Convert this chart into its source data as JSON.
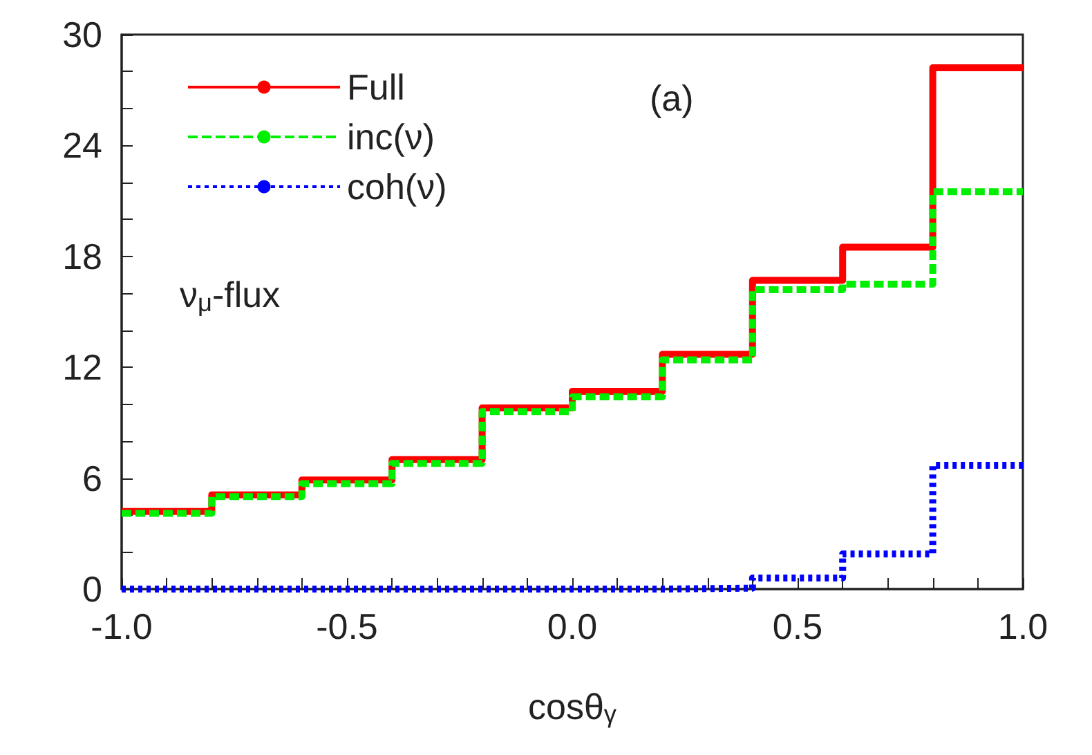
{
  "chart_data": {
    "type": "histogram",
    "xlabel": "cosθ$_{γ}$",
    "bins": [
      -1.0,
      -0.8,
      -0.6,
      -0.4,
      -0.2,
      0.0,
      0.2,
      0.4,
      0.6,
      0.8,
      1.0
    ],
    "series": [
      {
        "name": "Full",
        "color": "#ff0000",
        "line_style": "solid",
        "values": [
          4.2,
          5.1,
          5.9,
          7.0,
          9.8,
          10.7,
          12.7,
          16.7,
          18.5,
          28.2
        ]
      },
      {
        "name": "inc(ν)",
        "color": "#00ee00",
        "line_style": "dashed",
        "values": [
          4.1,
          5.0,
          5.7,
          6.8,
          9.6,
          10.4,
          12.4,
          16.2,
          16.5,
          21.5
        ]
      },
      {
        "name": "coh(ν)",
        "color": "#0000ff",
        "line_style": "dotted",
        "values": [
          0,
          0,
          0,
          0,
          0,
          0,
          0.05,
          0.6,
          1.9,
          6.7
        ]
      }
    ],
    "annotations": [
      "(a)",
      "ν$_{μ}$-flux"
    ],
    "xlim": [
      -1.0,
      1.0
    ],
    "xticks": [
      {
        "value": -1.0,
        "label": "-1.0"
      },
      {
        "value": -0.9,
        "label": null
      },
      {
        "value": -0.8,
        "label": null
      },
      {
        "value": -0.7,
        "label": null
      },
      {
        "value": -0.6,
        "label": null
      },
      {
        "value": -0.5,
        "label": "-0.5"
      },
      {
        "value": -0.4,
        "label": null
      },
      {
        "value": -0.3,
        "label": null
      },
      {
        "value": -0.2,
        "label": null
      },
      {
        "value": -0.1,
        "label": null
      },
      {
        "value": 0.0,
        "label": "0.0"
      },
      {
        "value": 0.1,
        "label": null
      },
      {
        "value": 0.2,
        "label": null
      },
      {
        "value": 0.3,
        "label": null
      },
      {
        "value": 0.4,
        "label": null
      },
      {
        "value": 0.5,
        "label": "0.5"
      },
      {
        "value": 0.6,
        "label": null
      },
      {
        "value": 0.7,
        "label": null
      },
      {
        "value": 0.8,
        "label": null
      },
      {
        "value": 0.9,
        "label": null
      },
      {
        "value": 1.0,
        "label": "1.0"
      }
    ],
    "ylim": [
      0,
      30
    ],
    "yticks": [
      0,
      {
        "value": 2,
        "label": null
      },
      {
        "value": 4,
        "label": null
      },
      6,
      {
        "value": 8,
        "label": null
      },
      {
        "value": 10,
        "label": null
      },
      12,
      {
        "value": 14,
        "label": null
      },
      {
        "value": 16,
        "label": null
      },
      18,
      {
        "value": 20,
        "label": null
      },
      {
        "value": 22,
        "label": null
      },
      24,
      {
        "value": 26,
        "label": null
      },
      {
        "value": 28,
        "label": null
      },
      30
    ],
    "grid": false,
    "legend": "top left"
  }
}
